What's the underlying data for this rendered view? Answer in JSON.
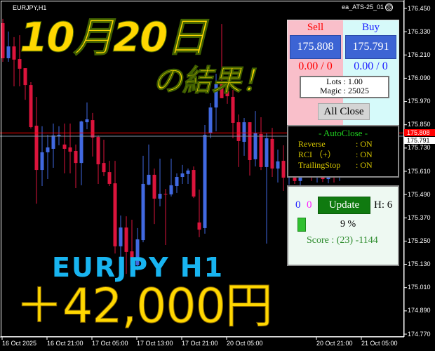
{
  "header": {
    "symbol": "EURJPY,H1",
    "ea_name": "ea_ATS-25_01",
    "ea_status_icon": "frown-face-icon"
  },
  "overlay": {
    "date": "10月20日",
    "result": "の結果！",
    "pair": "EURJPY  H1",
    "profit": "＋42,000円"
  },
  "trade_panel": {
    "sell_label": "Sell",
    "buy_label": "Buy",
    "sell_price": "175.808",
    "buy_price": "175.791",
    "sell_pl": "0.00 / 0",
    "buy_pl": "0.00 / 0",
    "lots": "Lots   : 1.00",
    "magic": "Magic : 25025",
    "all_close": "All Close"
  },
  "autoclose": {
    "title": "- AutoClose -",
    "items": [
      {
        "label": "Reverse",
        "value": ": ON"
      },
      {
        "label": "RCI （+）",
        "value": ": ON"
      },
      {
        "label": "TrailingStop",
        "value": ": ON"
      }
    ]
  },
  "info_panel": {
    "count_blue": "0",
    "count_magenta": "0",
    "update": "Update",
    "hours": "H: 6",
    "progress_text": "9 %",
    "progress": 9,
    "score": "Score : (23) -1144"
  },
  "price_axis": [
    "176.450",
    "176.330",
    "176.210",
    "176.090",
    "175.970",
    "175.850",
    "175.730",
    "175.610",
    "175.490",
    "175.370",
    "175.250",
    "175.130",
    "175.010",
    "174.890",
    "174.770"
  ],
  "price_tags": {
    "ask": "175.808",
    "bid": "175.791"
  },
  "time_axis": [
    "16 Oct 2025",
    "16 Oct 21:00",
    "17 Oct 05:00",
    "17 Oct 13:00",
    "17 Oct 21:00",
    "20 Oct 05:00",
    "20 Oct 21:00",
    "21 Oct 05:00"
  ],
  "colors": {
    "bull": "#4169e1",
    "bear": "#dc143c",
    "ask_line": "#ff0000",
    "bid_line": "#8090a0",
    "accent_yellow": "#ffd700",
    "accent_cyan": "#18b4f0"
  },
  "candles": [
    [
      176.374,
      176.396,
      176.175,
      176.193
    ],
    [
      176.193,
      176.331,
      176.175,
      176.254
    ],
    [
      176.254,
      176.302,
      176.048,
      176.186
    ],
    [
      176.189,
      176.312,
      176.048,
      176.139
    ],
    [
      176.142,
      176.142,
      175.979,
      176.055
    ],
    [
      176.055,
      176.07,
      175.831,
      175.838
    ],
    [
      175.845,
      175.994,
      175.443,
      175.617
    ],
    [
      175.617,
      175.842,
      175.534,
      175.708
    ],
    [
      175.708,
      175.798,
      175.57,
      175.733
    ],
    [
      175.726,
      175.856,
      175.628,
      175.795
    ],
    [
      175.791,
      175.842,
      175.744,
      175.798
    ],
    [
      175.748,
      175.856,
      175.599,
      175.726
    ],
    [
      175.733,
      175.856,
      175.599,
      175.711
    ],
    [
      175.715,
      175.748,
      175.523,
      175.653
    ],
    [
      175.653,
      175.871,
      175.538,
      175.867
    ],
    [
      175.863,
      175.965,
      175.827,
      175.878
    ],
    [
      175.874,
      175.911,
      175.686,
      175.784
    ],
    [
      175.787,
      175.795,
      175.545,
      175.646
    ],
    [
      175.653,
      175.773,
      175.585,
      175.606
    ],
    [
      175.606,
      175.664,
      175.534,
      175.545
    ],
    [
      175.548,
      175.664,
      175.186,
      175.223
    ],
    [
      175.223,
      175.382,
      175.125,
      175.32
    ],
    [
      175.32,
      175.378,
      175.081,
      175.194
    ],
    [
      175.197,
      175.36,
      175.081,
      175.125
    ],
    [
      175.125,
      175.317,
      175.099,
      175.259
    ],
    [
      175.255,
      175.69,
      175.244,
      175.545
    ],
    [
      175.541,
      175.748,
      175.538,
      175.592
    ],
    [
      175.592,
      175.624,
      175.338,
      175.469
    ],
    [
      175.469,
      175.675,
      175.429,
      175.494
    ],
    [
      175.494,
      175.519,
      175.23,
      175.491
    ],
    [
      175.491,
      175.675,
      175.48,
      175.538
    ],
    [
      175.534,
      175.599,
      175.498,
      175.581
    ],
    [
      175.581,
      175.643,
      175.545,
      175.599
    ],
    [
      175.596,
      175.624,
      175.545,
      175.614
    ],
    [
      175.617,
      175.635,
      175.472,
      175.48
    ],
    [
      175.346,
      175.516,
      175.27,
      175.309
    ],
    [
      175.317,
      175.849,
      175.288,
      175.798
    ],
    [
      175.806,
      175.961,
      175.78,
      175.939
    ],
    [
      175.939,
      176.113,
      175.816,
      176.059
    ],
    [
      176.077,
      176.37,
      175.987,
      175.987
    ],
    [
      176.023,
      176.066,
      175.958,
      175.997
    ],
    [
      175.994,
      176.03,
      175.78,
      175.86
    ],
    [
      175.863,
      175.903,
      175.632,
      175.766
    ],
    [
      175.762,
      175.885,
      175.69,
      175.863
    ],
    [
      175.863,
      175.863,
      175.588,
      175.668
    ],
    [
      175.672,
      175.921,
      175.635,
      175.806
    ],
    [
      175.802,
      175.889,
      175.617,
      175.632
    ],
    [
      175.632,
      175.806,
      175.237,
      175.78
    ],
    [
      175.777,
      175.834,
      175.581,
      175.624
    ],
    [
      175.624,
      175.722,
      175.552,
      175.661
    ],
    [
      175.664,
      175.744,
      175.509,
      175.577
    ],
    [
      175.577,
      175.69,
      175.541,
      175.664
    ],
    [
      175.664,
      175.7,
      175.545,
      175.56
    ],
    [
      175.56,
      175.65,
      175.53,
      175.62
    ],
    [
      175.62,
      175.72,
      175.58,
      175.7
    ],
    [
      175.7,
      175.74,
      175.56,
      175.59
    ],
    [
      175.59,
      175.68,
      175.552,
      175.66
    ],
    [
      175.66,
      175.7,
      175.555,
      175.57
    ],
    [
      175.57,
      175.7,
      175.548,
      175.68
    ],
    [
      175.68,
      175.72,
      175.552,
      175.6
    ],
    [
      175.6,
      175.75,
      175.56,
      175.72
    ],
    [
      175.72,
      175.82,
      175.69,
      175.791
    ]
  ]
}
